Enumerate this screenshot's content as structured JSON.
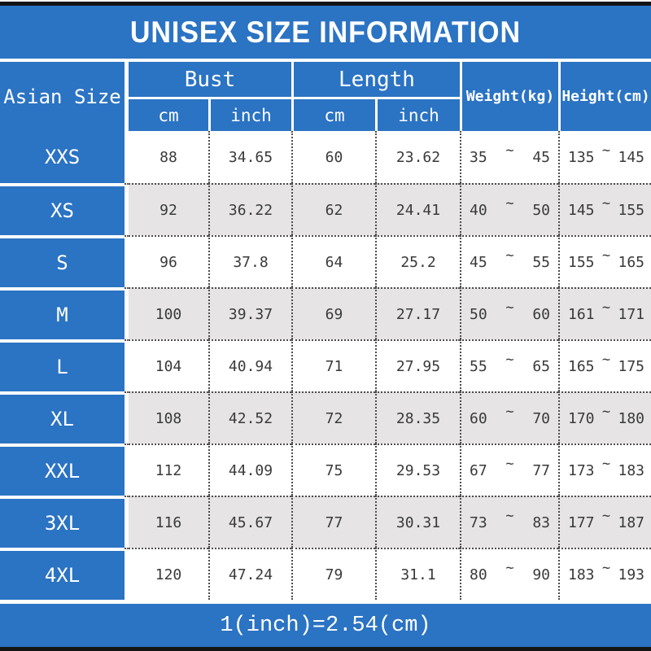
{
  "title": "UNISEX SIZE INFORMATION",
  "header": {
    "size_col": "Asian Size",
    "bust": "Bust",
    "length": "Length",
    "weight": "Weight(kg)",
    "height": "Height(cm)",
    "sub_cm": "cm",
    "sub_inch": "inch",
    "range_separator": "~"
  },
  "rows": [
    {
      "size": "XXS",
      "bust_cm": "88",
      "bust_inch": "34.65",
      "length_cm": "60",
      "length_inch": "23.62",
      "weight_min": "35",
      "weight_max": "45",
      "height_min": "135",
      "height_max": "145"
    },
    {
      "size": "XS",
      "bust_cm": "92",
      "bust_inch": "36.22",
      "length_cm": "62",
      "length_inch": "24.41",
      "weight_min": "40",
      "weight_max": "50",
      "height_min": "145",
      "height_max": "155"
    },
    {
      "size": "S",
      "bust_cm": "96",
      "bust_inch": "37.8",
      "length_cm": "64",
      "length_inch": "25.2",
      "weight_min": "45",
      "weight_max": "55",
      "height_min": "155",
      "height_max": "165"
    },
    {
      "size": "M",
      "bust_cm": "100",
      "bust_inch": "39.37",
      "length_cm": "69",
      "length_inch": "27.17",
      "weight_min": "50",
      "weight_max": "60",
      "height_min": "161",
      "height_max": "171"
    },
    {
      "size": "L",
      "bust_cm": "104",
      "bust_inch": "40.94",
      "length_cm": "71",
      "length_inch": "27.95",
      "weight_min": "55",
      "weight_max": "65",
      "height_min": "165",
      "height_max": "175"
    },
    {
      "size": "XL",
      "bust_cm": "108",
      "bust_inch": "42.52",
      "length_cm": "72",
      "length_inch": "28.35",
      "weight_min": "60",
      "weight_max": "70",
      "height_min": "170",
      "height_max": "180"
    },
    {
      "size": "XXL",
      "bust_cm": "112",
      "bust_inch": "44.09",
      "length_cm": "75",
      "length_inch": "29.53",
      "weight_min": "67",
      "weight_max": "77",
      "height_min": "173",
      "height_max": "183"
    },
    {
      "size": "3XL",
      "bust_cm": "116",
      "bust_inch": "45.67",
      "length_cm": "77",
      "length_inch": "30.31",
      "weight_min": "73",
      "weight_max": "83",
      "height_min": "177",
      "height_max": "187"
    },
    {
      "size": "4XL",
      "bust_cm": "120",
      "bust_inch": "47.24",
      "length_cm": "79",
      "length_inch": "31.1",
      "weight_min": "80",
      "weight_max": "90",
      "height_min": "183",
      "height_max": "193"
    }
  ],
  "footer": "1(inch)=2.54(cm)",
  "colors": {
    "accent_blue": "#2b73c3",
    "alt_row_gray": "#e6e4e4",
    "dotted_border": "#4d4d4d",
    "bar_black": "#141414",
    "body_text": "#3a3a3a"
  }
}
